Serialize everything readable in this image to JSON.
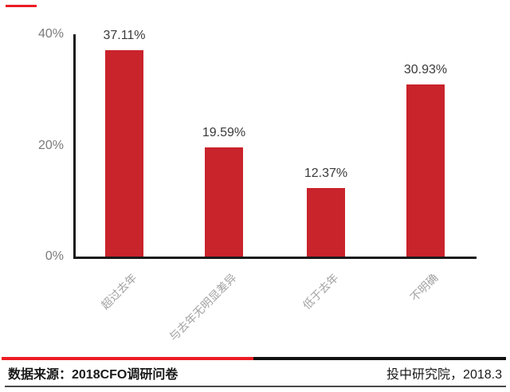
{
  "chart_data": {
    "type": "bar",
    "title": "",
    "categories": [
      "超过去年",
      "与去年无明显差异",
      "低于去年",
      "不明确"
    ],
    "values": [
      37.11,
      19.59,
      12.37,
      30.93
    ],
    "value_labels": [
      "37.11%",
      "19.59%",
      "12.37%",
      "30.93%"
    ],
    "xlabel": "",
    "ylabel": "",
    "ylim": [
      0,
      40
    ],
    "y_ticks": [
      {
        "label": "40%",
        "value": 40
      },
      {
        "label": "20%",
        "value": 20
      },
      {
        "label": "0%",
        "value": 0
      }
    ],
    "grid": false,
    "legend_position": "none",
    "bar_color": "#C9232B",
    "label_color": "#3a3a3a",
    "tick_color": "#7a7a7a",
    "category_label_color": "#a3a3a3"
  },
  "decorations": {
    "top_left_dash_color": "#EC1C24",
    "divider_red_color": "#EC1C24",
    "divider_black_color": "#111111",
    "axis_color": "#1a1a1a"
  },
  "footer": {
    "source_label": "数据来源：2018CFO调研问卷",
    "publisher": "投中研究院，2018.3"
  }
}
